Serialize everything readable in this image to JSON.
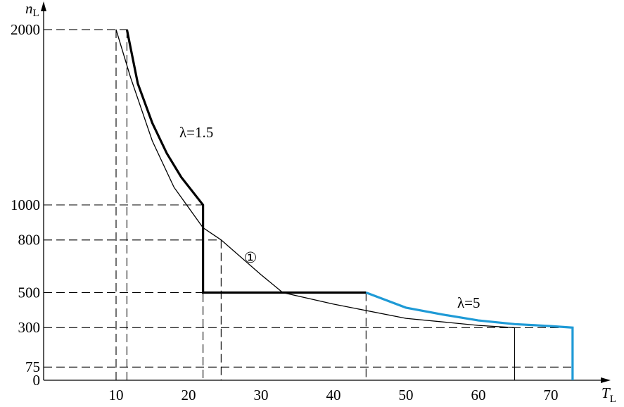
{
  "chart_data": {
    "type": "line",
    "xlabel": {
      "text": "T",
      "sub": "L"
    },
    "ylabel": {
      "text": "n",
      "sub": "L"
    },
    "xlim": [
      0,
      78
    ],
    "ylim": [
      0,
      2125
    ],
    "xticks": [
      10,
      20,
      30,
      40,
      50,
      60,
      70
    ],
    "yticks": [
      0,
      75,
      300,
      500,
      800,
      1000,
      2000
    ],
    "series": [
      {
        "name": "λ=1.5",
        "color": "#000000",
        "x": [
          11.5,
          13,
          15,
          17,
          19,
          22,
          22,
          44.5
        ],
        "values": [
          2000,
          1692,
          1467,
          1294,
          1158,
          1000,
          500,
          500
        ]
      },
      {
        "name": "λ=5",
        "color": "#1e9ad6",
        "x": [
          44.5,
          50,
          55,
          60,
          65,
          70,
          73,
          73
        ],
        "values": [
          500,
          414,
          375,
          341,
          320,
          309,
          300,
          0
        ]
      },
      {
        "name": "①",
        "color": "#000000",
        "x": [
          10,
          12,
          15,
          18,
          22,
          24.5,
          30,
          33,
          40,
          50,
          60,
          65
        ],
        "values": [
          2000,
          1727,
          1365,
          1100,
          870,
          800,
          602,
          500,
          434,
          353,
          313,
          300
        ]
      }
    ]
  }
}
